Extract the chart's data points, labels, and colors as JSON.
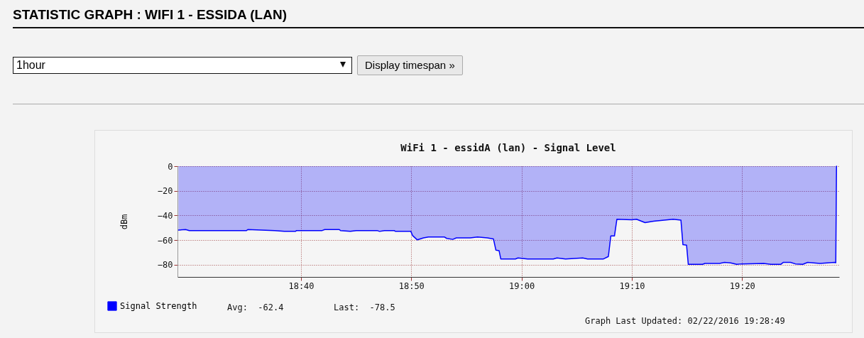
{
  "chart_data": {
    "type": "area",
    "title": "STATISTIC GRAPH : WIFI 1 - ESSIDA (LAN)",
    "subtitle": "WiFi 1 - essidA (lan) - Signal Level",
    "ylabel": "dBm",
    "series": [
      {
        "name": "Signal Strength",
        "color": "#0000ff",
        "x": [
          18.4815,
          18.4923,
          18.4978,
          18.5844,
          18.5863,
          18.6269,
          18.6417,
          18.6582,
          18.66,
          18.6987,
          18.7025,
          18.7245,
          18.7264,
          18.7412,
          18.7503,
          18.7817,
          18.7854,
          18.7928,
          18.8075,
          18.8094,
          18.8327,
          18.8352,
          18.8425,
          18.8518,
          18.8592,
          18.8832,
          18.8869,
          18.896,
          18.9015,
          18.9224,
          18.9335,
          18.9483,
          18.9575,
          18.9612,
          18.966,
          18.9686,
          18.9908,
          18.9945,
          19.0092,
          19.048,
          19.0536,
          19.0665,
          19.0924,
          19.0998,
          19.1238,
          19.1312,
          19.1349,
          19.1404,
          19.1441,
          19.1663,
          19.1737,
          19.1866,
          19.1996,
          19.2291,
          19.2409,
          19.2439,
          19.2494,
          19.252,
          19.2735,
          19.2772,
          19.2993,
          19.3067,
          19.316,
          19.3252,
          19.3326,
          19.3659,
          19.3769,
          19.3917,
          19.3954,
          19.4065,
          19.4139,
          19.425,
          19.4324,
          19.4509,
          19.473,
          19.4749,
          19.476
        ],
        "values": [
          -51.9,
          -51.5,
          -52.3,
          -52.3,
          -51.5,
          -52.3,
          -53,
          -53,
          -52.3,
          -52.3,
          -51.5,
          -51.5,
          -52.3,
          -53,
          -52.3,
          -52.3,
          -53,
          -52.3,
          -52.3,
          -53,
          -53,
          -56.3,
          -59.9,
          -58.3,
          -57.5,
          -57.5,
          -58.7,
          -59.5,
          -58.3,
          -58.3,
          -57.5,
          -58.3,
          -59.1,
          -68.2,
          -68.6,
          -75.4,
          -75.4,
          -74.6,
          -75.4,
          -75.4,
          -74.6,
          -75.4,
          -74.6,
          -75.4,
          -75.4,
          -73.4,
          -56.7,
          -56.7,
          -43.1,
          -43.5,
          -43.1,
          -45.9,
          -44.7,
          -43.1,
          -43.9,
          -63.8,
          -64.2,
          -79.8,
          -79.8,
          -79,
          -79,
          -78.2,
          -78.6,
          -79.8,
          -79.4,
          -79,
          -79.8,
          -79.8,
          -78.2,
          -78.2,
          -79.4,
          -79.8,
          -78.2,
          -79,
          -78.2,
          -78.5,
          0
        ]
      }
    ],
    "xlim": [
      18.48,
      19.48
    ],
    "xticks": [
      {
        "value": 18.6667,
        "label": "18:40"
      },
      {
        "value": 18.8333,
        "label": "18:50"
      },
      {
        "value": 19,
        "label": "19:00"
      },
      {
        "value": 19.1667,
        "label": "19:10"
      },
      {
        "value": 19.3333,
        "label": "19:20"
      }
    ],
    "ylim": [
      -90,
      0
    ],
    "yticks": [
      -80,
      -60,
      -40,
      -20,
      0
    ],
    "grid": true,
    "legend": "bottom left",
    "annotations": [
      "1hour",
      "Display timespan »",
      "Avg:  -62.4",
      "Last:  -78.5",
      "Graph Last Updated: 02/22/2016 19:28:49"
    ]
  }
}
